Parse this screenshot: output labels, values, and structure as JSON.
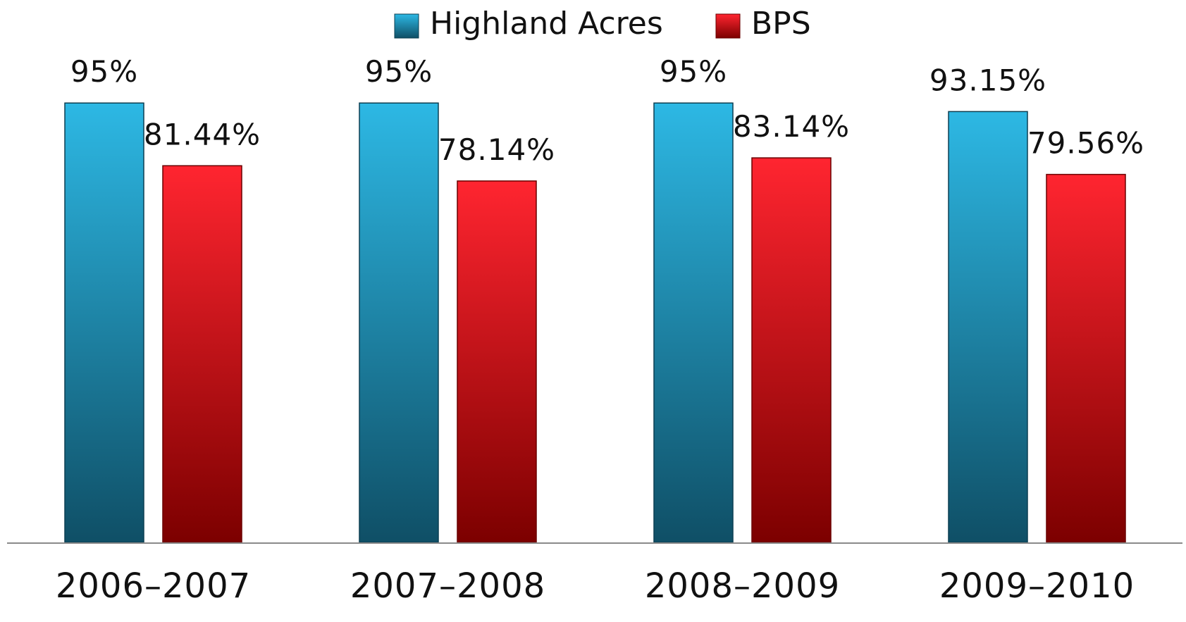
{
  "chart_data": {
    "type": "bar",
    "categories": [
      "2006-2007",
      "2007-2008",
      "2008-2009",
      "2009-2010"
    ],
    "series": [
      {
        "name": "Highland Acres",
        "values": [
          95,
          95,
          95,
          93.15
        ],
        "labels": [
          "95%",
          "95%",
          "95%",
          "93.15%"
        ]
      },
      {
        "name": "BPS",
        "values": [
          81.44,
          78.14,
          83.14,
          79.56
        ],
        "labels": [
          "81.44%",
          "78.14%",
          "83.14%",
          "79.56%"
        ]
      }
    ],
    "ylim": [
      0,
      100
    ],
    "legend_position": "top-center",
    "grid": false
  },
  "colors": {
    "highland_top": "#2db8e4",
    "highland_bottom": "#0f4f66",
    "bps_top": "#ff2530",
    "bps_bottom": "#7c0000"
  }
}
